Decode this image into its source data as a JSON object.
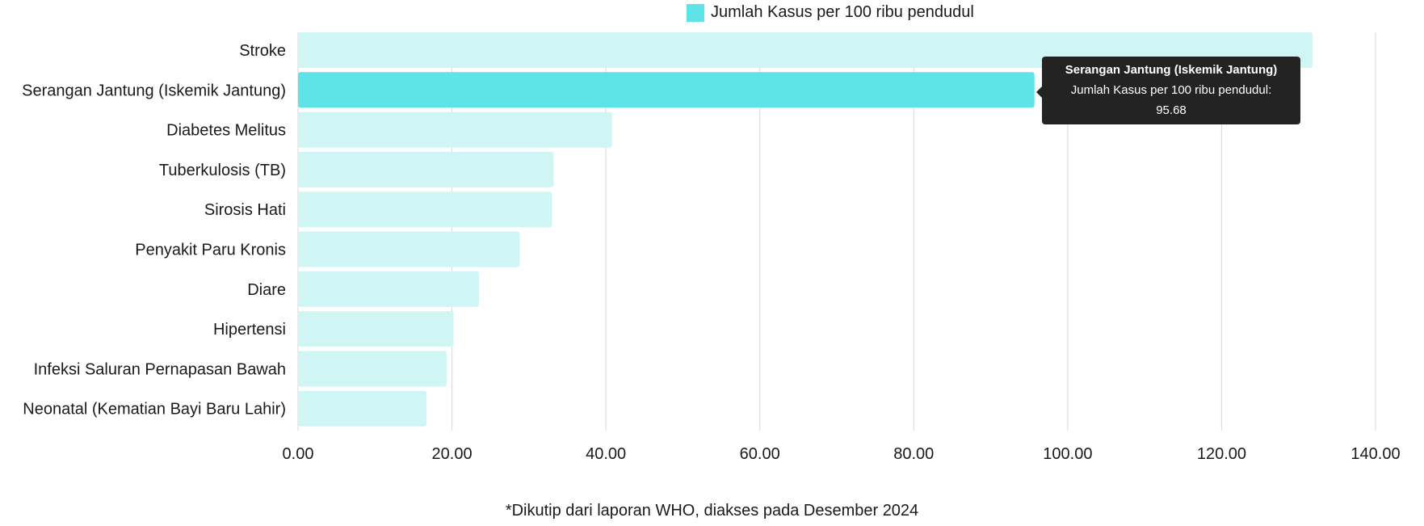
{
  "chart_data": {
    "type": "bar",
    "orientation": "horizontal",
    "categories": [
      "Stroke",
      "Serangan Jantung (Iskemik Jantung)",
      "Diabetes Melitus",
      "Tuberkulosis (TB)",
      "Sirosis Hati",
      "Penyakit Paru Kronis",
      "Diare",
      "Hipertensi",
      "Infeksi Saluran Pernapasan Bawah",
      "Neonatal (Kematian Bayi Baru Lahir)"
    ],
    "series": [
      {
        "name": "Jumlah Kasus per 100 ribu pendudul",
        "values": [
          131.8,
          95.68,
          40.8,
          33.2,
          33.0,
          28.8,
          23.5,
          20.2,
          19.3,
          16.7
        ]
      }
    ],
    "xlim": [
      0,
      140
    ],
    "xticks": [
      "0.00",
      "20.00",
      "40.00",
      "60.00",
      "80.00",
      "100.00",
      "120.00",
      "140.00"
    ],
    "grid": "vertical",
    "legend_position": "top-center",
    "highlighted_index": 1,
    "colors": {
      "bar": "#cff5f5",
      "bar_highlight": "#5ee3e8",
      "grid": "#d9d9d9",
      "tooltip_bg": "#232323"
    }
  },
  "legend": {
    "label": "Jumlah Kasus per 100 ribu pendudul"
  },
  "tooltip": {
    "title": "Serangan Jantung (Iskemik Jantung)",
    "label": "Jumlah Kasus per 100 ribu pendudul:",
    "value": "95.68"
  },
  "footnote": "*Dikutip dari laporan WHO, diakses pada Desember 2024"
}
